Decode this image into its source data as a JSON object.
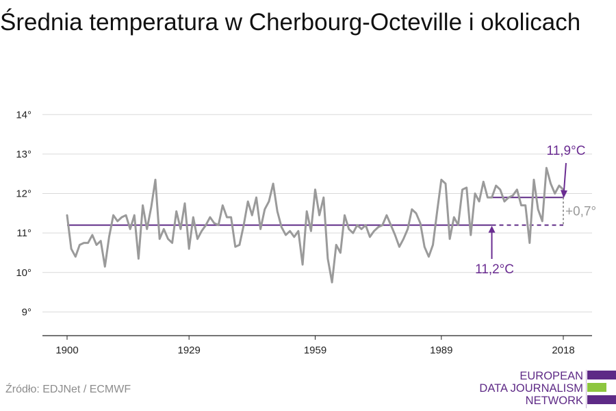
{
  "chart_data": {
    "type": "line",
    "title": "Średnia temperatura w Cherbourg-Octeville i okolicach",
    "xlabel": "",
    "ylabel": "",
    "xlim": [
      1900,
      2018
    ],
    "ylim": [
      8.4,
      14.3
    ],
    "x_ticks": [
      1900,
      1929,
      1959,
      1989,
      2018
    ],
    "x_tick_labels": [
      "1900",
      "1929",
      "1959",
      "1989",
      "2018"
    ],
    "y_ticks": [
      9,
      10,
      11,
      12,
      13,
      14
    ],
    "y_tick_labels": [
      "9°",
      "10°",
      "11°",
      "12°",
      "13°",
      "14°"
    ],
    "grid": true,
    "series": [
      {
        "name": "",
        "color": "#9a9a9a",
        "x": [
          1900,
          1901,
          1902,
          1903,
          1904,
          1905,
          1906,
          1907,
          1908,
          1909,
          1910,
          1911,
          1912,
          1913,
          1914,
          1915,
          1916,
          1917,
          1918,
          1919,
          1920,
          1921,
          1922,
          1923,
          1924,
          1925,
          1926,
          1927,
          1928,
          1929,
          1930,
          1931,
          1932,
          1933,
          1934,
          1935,
          1936,
          1937,
          1938,
          1939,
          1940,
          1941,
          1942,
          1943,
          1944,
          1945,
          1946,
          1947,
          1948,
          1949,
          1950,
          1951,
          1952,
          1953,
          1954,
          1955,
          1956,
          1957,
          1958,
          1959,
          1960,
          1961,
          1962,
          1963,
          1964,
          1965,
          1966,
          1967,
          1968,
          1969,
          1970,
          1971,
          1972,
          1973,
          1974,
          1975,
          1976,
          1977,
          1978,
          1979,
          1980,
          1981,
          1982,
          1983,
          1984,
          1985,
          1986,
          1987,
          1988,
          1989,
          1990,
          1991,
          1992,
          1993,
          1994,
          1995,
          1996,
          1997,
          1998,
          1999,
          2000,
          2001,
          2002,
          2003,
          2004,
          2005,
          2006,
          2007,
          2008,
          2009,
          2010,
          2011,
          2012,
          2013,
          2014,
          2015,
          2016,
          2017,
          2018
        ],
        "values": [
          11.45,
          10.6,
          10.4,
          10.7,
          10.75,
          10.75,
          10.95,
          10.7,
          10.8,
          10.15,
          10.9,
          11.45,
          11.3,
          11.4,
          11.45,
          11.1,
          11.45,
          10.35,
          11.7,
          11.1,
          11.65,
          12.35,
          10.85,
          11.1,
          10.85,
          10.75,
          11.55,
          11.1,
          11.75,
          10.6,
          11.4,
          10.85,
          11.05,
          11.2,
          11.4,
          11.25,
          11.2,
          11.7,
          11.4,
          11.4,
          10.65,
          10.7,
          11.2,
          11.8,
          11.45,
          11.9,
          11.1,
          11.6,
          11.8,
          12.25,
          11.55,
          11.15,
          10.95,
          11.05,
          10.9,
          11.05,
          10.2,
          11.55,
          11.05,
          12.1,
          11.45,
          11.9,
          10.35,
          9.75,
          10.7,
          10.5,
          11.45,
          11.1,
          11.0,
          11.2,
          11.1,
          11.2,
          10.9,
          11.05,
          11.15,
          11.2,
          11.45,
          11.2,
          10.95,
          10.65,
          10.85,
          11.1,
          11.6,
          11.5,
          11.25,
          10.65,
          10.4,
          10.7,
          11.55,
          12.35,
          12.25,
          10.85,
          11.4,
          11.2,
          12.1,
          12.15,
          10.95,
          12.0,
          11.8,
          12.3,
          11.9,
          11.9,
          12.2,
          12.1,
          11.8,
          11.9,
          11.95,
          12.1,
          11.7,
          11.7,
          10.75,
          12.35,
          11.6,
          11.3,
          12.65,
          12.25,
          12.0,
          12.2,
          12.1
        ]
      }
    ],
    "reference_lines": [
      {
        "label": "",
        "value": 11.2,
        "color": "#5e2a86",
        "from": 1900,
        "to": 2001,
        "style": "solid"
      },
      {
        "label": "",
        "value": 11.2,
        "color": "#5e2a86",
        "from": 2001,
        "to": 2018,
        "style": "dashed"
      },
      {
        "label": "",
        "value": 11.9,
        "color": "#5e2a86",
        "from": 2001,
        "to": 2018,
        "style": "solid"
      }
    ],
    "annotations": [
      {
        "text": "11,9°C",
        "color": "#6a2c91",
        "x": 2018,
        "y": 11.9
      },
      {
        "text": "11,2°C",
        "color": "#6a2c91",
        "x": 2001,
        "y": 11.2
      },
      {
        "text": "+0,7°",
        "color": "#9a9a9a",
        "x": 2018,
        "y": 11.55
      }
    ]
  },
  "source": "Źródło: EDJNet / ECMWF",
  "logo": {
    "lines": [
      "EUROPEAN",
      "DATA JOURNALISM",
      "NETWORK"
    ],
    "colors": [
      "#5e2a86",
      "#8dc63f",
      "#5e2a86"
    ]
  }
}
